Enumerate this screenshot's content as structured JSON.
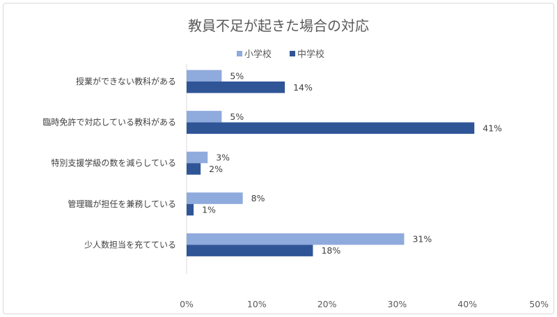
{
  "chart_data": {
    "type": "bar",
    "orientation": "horizontal",
    "title": "教員不足が起きた場合の対応",
    "categories": [
      "授業ができない教科がある",
      "臨時免許で対応している教科がある",
      "特別支援学級の数を減らしている",
      "管理職が担任を兼務している",
      "少人数担当を充てている"
    ],
    "series": [
      {
        "name": "小学校",
        "color": "#8faadc",
        "values": [
          5,
          5,
          3,
          8,
          31
        ],
        "labels": [
          "5%",
          "5%",
          "3%",
          "8%",
          "31%"
        ]
      },
      {
        "name": "中学校",
        "color": "#2f5597",
        "values": [
          14,
          41,
          2,
          1,
          18
        ],
        "labels": [
          "14%",
          "41%",
          "2%",
          "1%",
          "18%"
        ]
      }
    ],
    "xlim": [
      0,
      50
    ],
    "xticks": [
      0,
      10,
      20,
      30,
      40,
      50
    ],
    "xtick_labels": [
      "0%",
      "10%",
      "20%",
      "30%",
      "40%",
      "50%"
    ],
    "legend_position": "top",
    "grid": false
  }
}
